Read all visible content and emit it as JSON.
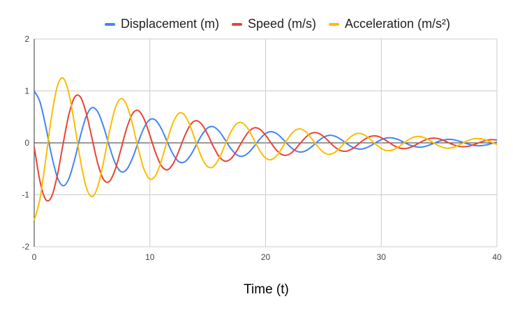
{
  "chart_data": {
    "type": "line",
    "title": "",
    "xlabel": "Time (t)",
    "ylabel": "",
    "xlim": [
      0,
      40
    ],
    "ylim": [
      -2,
      2
    ],
    "x_ticks": [
      "0",
      "10",
      "20",
      "30",
      "40"
    ],
    "y_ticks": [
      "2",
      "1",
      "0",
      "-1",
      "-2"
    ],
    "grid": true,
    "legend_position": "top",
    "x": [
      0,
      0.5,
      1,
      1.5,
      2,
      2.5,
      3,
      3.5,
      4,
      4.5,
      5,
      5.5,
      6,
      6.5,
      7,
      7.5,
      8,
      8.5,
      9,
      9.5,
      10,
      10.5,
      11,
      11.5,
      12,
      12.5,
      13,
      13.5,
      14,
      14.5,
      15,
      15.5,
      16,
      16.5,
      17,
      17.5,
      18,
      18.5,
      19,
      19.5,
      20,
      20.5,
      21,
      21.5,
      22,
      22.5,
      23,
      23.5,
      24,
      24.5,
      25,
      25.5,
      26,
      26.5,
      27,
      27.5,
      28,
      28.5,
      29,
      29.5,
      30,
      30.5,
      31,
      31.5,
      32,
      32.5,
      33,
      33.5,
      34,
      34.5,
      35,
      35.5,
      36,
      36.5,
      37,
      37.5,
      38,
      38.5,
      39,
      39.5,
      40
    ],
    "series": [
      {
        "name": "Displacement (m)",
        "color": "#4285f4",
        "values": [
          1,
          0.788,
          0.314,
          -0.236,
          -0.663,
          -0.826,
          -0.688,
          -0.317,
          0.138,
          0.512,
          0.679,
          0.595,
          0.309,
          -0.067,
          -0.39,
          -0.554,
          -0.511,
          -0.291,
          0.015,
          0.294,
          0.449,
          0.435,
          0.269,
          0.021,
          -0.217,
          -0.361,
          -0.368,
          -0.245,
          -0.045,
          0.157,
          0.289,
          0.31,
          0.22,
          0.06,
          -0.11,
          -0.229,
          -0.259,
          -0.195,
          -0.068,
          0.074,
          0.18,
          0.215,
          0.172,
          0.071,
          -0.047,
          -0.14,
          -0.177,
          -0.15,
          -0.071,
          0.027,
          0.108,
          0.145,
          0.129,
          0.069,
          -0.012,
          -0.082,
          -0.118,
          -0.111,
          -0.064,
          0.001,
          0.061,
          0.096,
          0.094,
          0.059,
          0.006,
          -0.045,
          -0.077,
          -0.08,
          -0.054,
          -0.011,
          0.032,
          0.061,
          0.067,
          0.048,
          0.014,
          -0.023,
          -0.049,
          -0.056,
          -0.043,
          -0.016,
          0.015
        ]
      },
      {
        "name": "Speed (m/s)",
        "color": "#ea4335",
        "values": [
          -0.075,
          -0.738,
          -1.093,
          -1.038,
          -0.623,
          -0.018,
          0.549,
          0.882,
          0.881,
          0.57,
          0.082,
          -0.4,
          -0.706,
          -0.743,
          -0.515,
          -0.122,
          0.285,
          0.562,
          0.622,
          0.459,
          0.146,
          -0.195,
          -0.443,
          -0.518,
          -0.405,
          -0.158,
          0.127,
          0.347,
          0.428,
          0.354,
          0.16,
          -0.076,
          -0.268,
          -0.352,
          -0.307,
          -0.156,
          0.038,
          0.205,
          0.288,
          0.263,
          0.148,
          -0.011,
          -0.154,
          -0.233,
          -0.225,
          -0.138,
          -0.008,
          0.114,
          0.188,
          0.19,
          0.126,
          0.021,
          -0.083,
          -0.15,
          -0.16,
          -0.113,
          -0.029,
          0.059,
          0.119,
          0.134,
          0.1,
          0.034,
          -0.04,
          -0.094,
          -0.111,
          -0.088,
          -0.036,
          0.025,
          0.073,
          0.092,
          0.077,
          0.036,
          -0.015,
          -0.056,
          -0.075,
          -0.067,
          -0.035,
          0.007,
          0.043,
          0.062,
          0.057
        ]
      },
      {
        "name": "Acceleration (m/s²)",
        "color": "#fbbc04",
        "values": [
          -1.495,
          -1.076,
          -0.309,
          0.511,
          1.092,
          1.247,
          0.953,
          0.345,
          -0.34,
          -0.857,
          -1.035,
          -0.836,
          -0.36,
          0.212,
          0.665,
          0.853,
          0.726,
          0.354,
          -0.116,
          -0.511,
          -0.698,
          -0.626,
          -0.339,
          0.046,
          0.388,
          0.568,
          0.536,
          0.317,
          0.003,
          -0.289,
          -0.459,
          -0.455,
          -0.292,
          -0.037,
          0.212,
          0.369,
          0.384,
          0.264,
          0.059,
          -0.151,
          -0.293,
          -0.322,
          -0.236,
          -0.073,
          0.104,
          0.232,
          0.268,
          0.208,
          0.079,
          -0.068,
          -0.181,
          -0.222,
          -0.182,
          -0.081,
          0.042,
          0.14,
          0.183,
          0.158,
          0.079,
          -0.022,
          -0.107,
          -0.149,
          -0.136,
          -0.075,
          0.007,
          0.081,
          0.121,
          0.116,
          0.07,
          0.003,
          -0.06,
          -0.098,
          -0.098,
          -0.064,
          -0.01,
          0.044,
          0.078,
          0.083,
          0.058,
          0.014,
          -0.031
        ]
      }
    ]
  }
}
